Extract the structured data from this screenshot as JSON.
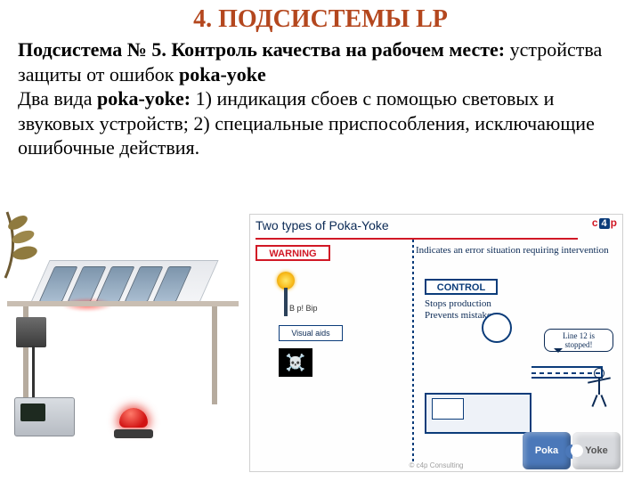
{
  "colors": {
    "title": "#b4471e",
    "text": "#000000",
    "red": "#d11825",
    "navy": "#0b3c7a",
    "navytext": "#0b2a55",
    "grey": "#d7d9dd",
    "puzzle_blue": "#4b78b9"
  },
  "title": "4. ПОДСИСТЕМЫ LP",
  "para": {
    "lead_label": "Подсистема № 5. Контроль качества на рабочем месте:",
    "lead_rest": " устройства защиты от ошибок ",
    "lead_term": "poka-yoke",
    "line2_a": "Два вида ",
    "line2_b": "poka-yoke:",
    "line2_c": " 1) индикация сбоев с помощью световых и звуковых устройств; 2) специальные приспособления, исключающие ошибочные действия."
  },
  "diagram": {
    "title": "Two types of Poka-Yoke",
    "logo_a": "c",
    "logo_b": "4",
    "logo_c": "p",
    "warning_label": "WARNING",
    "warning_desc": "Indicates an error situation requiring intervention",
    "control_label": "CONTROL",
    "control_desc": "Stops production\nPrevents mistakes",
    "bip": "B p! Bip",
    "visual_aids": "Visual aids",
    "speech": "Line 12 is stopped!",
    "attrib": "© c4p Consulting"
  },
  "puzzle": {
    "left": "Poka",
    "right": "Yoke"
  }
}
